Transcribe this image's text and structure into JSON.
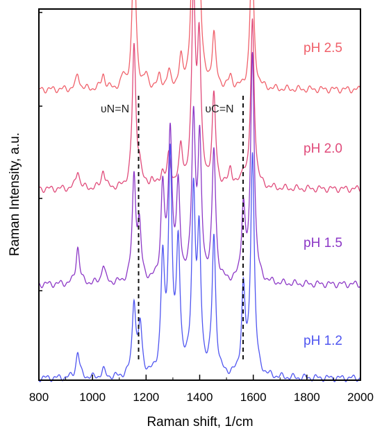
{
  "chart_data": {
    "type": "line",
    "title": "",
    "xlabel": "Raman shift, 1/cm",
    "ylabel": "Raman Intensity, a.u.",
    "xlim": [
      800,
      2000
    ],
    "x_ticks": [
      800,
      1000,
      1200,
      1400,
      1600,
      1800,
      2000
    ],
    "grid": false,
    "legend": "labels placed beside each trace on the right",
    "annotations": [
      {
        "text": "υN=N",
        "x": 1172,
        "style": "dashed vertical line"
      },
      {
        "text": "υC=N",
        "x": 1562,
        "style": "dashed vertical line"
      }
    ],
    "series": [
      {
        "name": "pH 2.5",
        "color": "#f0606a",
        "peaks": [
          [
            945,
            0.04
          ],
          [
            1040,
            0.04
          ],
          [
            1115,
            0.03
          ],
          [
            1155,
            0.4
          ],
          [
            1200,
            0.03
          ],
          [
            1250,
            0.03
          ],
          [
            1285,
            0.04
          ],
          [
            1330,
            0.07
          ],
          [
            1377,
            0.59
          ],
          [
            1398,
            0.34
          ],
          [
            1453,
            0.14
          ],
          [
            1515,
            0.03
          ],
          [
            1595,
            0.38
          ]
        ]
      },
      {
        "name": "pH 2.0",
        "color": "#e04a7a",
        "peaks": [
          [
            945,
            0.05
          ],
          [
            1040,
            0.05
          ],
          [
            1155,
            0.38
          ],
          [
            1175,
            0.05
          ],
          [
            1220,
            0.02
          ],
          [
            1260,
            0.04
          ],
          [
            1285,
            0.08
          ],
          [
            1330,
            0.1
          ],
          [
            1377,
            0.52
          ],
          [
            1398,
            0.38
          ],
          [
            1453,
            0.24
          ],
          [
            1515,
            0.05
          ],
          [
            1563,
            0.04
          ],
          [
            1597,
            0.45
          ]
        ]
      },
      {
        "name": "pH 1.5",
        "color": "#8c37c6",
        "peaks": [
          [
            945,
            0.1
          ],
          [
            1040,
            0.05
          ],
          [
            1155,
            0.28
          ],
          [
            1175,
            0.14
          ],
          [
            1262,
            0.25
          ],
          [
            1290,
            0.4
          ],
          [
            1320,
            0.24
          ],
          [
            1377,
            0.43
          ],
          [
            1400,
            0.36
          ],
          [
            1453,
            0.35
          ],
          [
            1563,
            0.2
          ],
          [
            1597,
            0.62
          ]
        ]
      },
      {
        "name": "pH 1.2",
        "color": "#4f55f0",
        "peaks": [
          [
            945,
            0.07
          ],
          [
            1040,
            0.02
          ],
          [
            1155,
            0.2
          ],
          [
            1178,
            0.13
          ],
          [
            1262,
            0.3
          ],
          [
            1290,
            0.58
          ],
          [
            1320,
            0.34
          ],
          [
            1377,
            0.48
          ],
          [
            1398,
            0.35
          ],
          [
            1453,
            0.37
          ],
          [
            1563,
            0.23
          ],
          [
            1597,
            0.6
          ]
        ]
      }
    ]
  }
}
